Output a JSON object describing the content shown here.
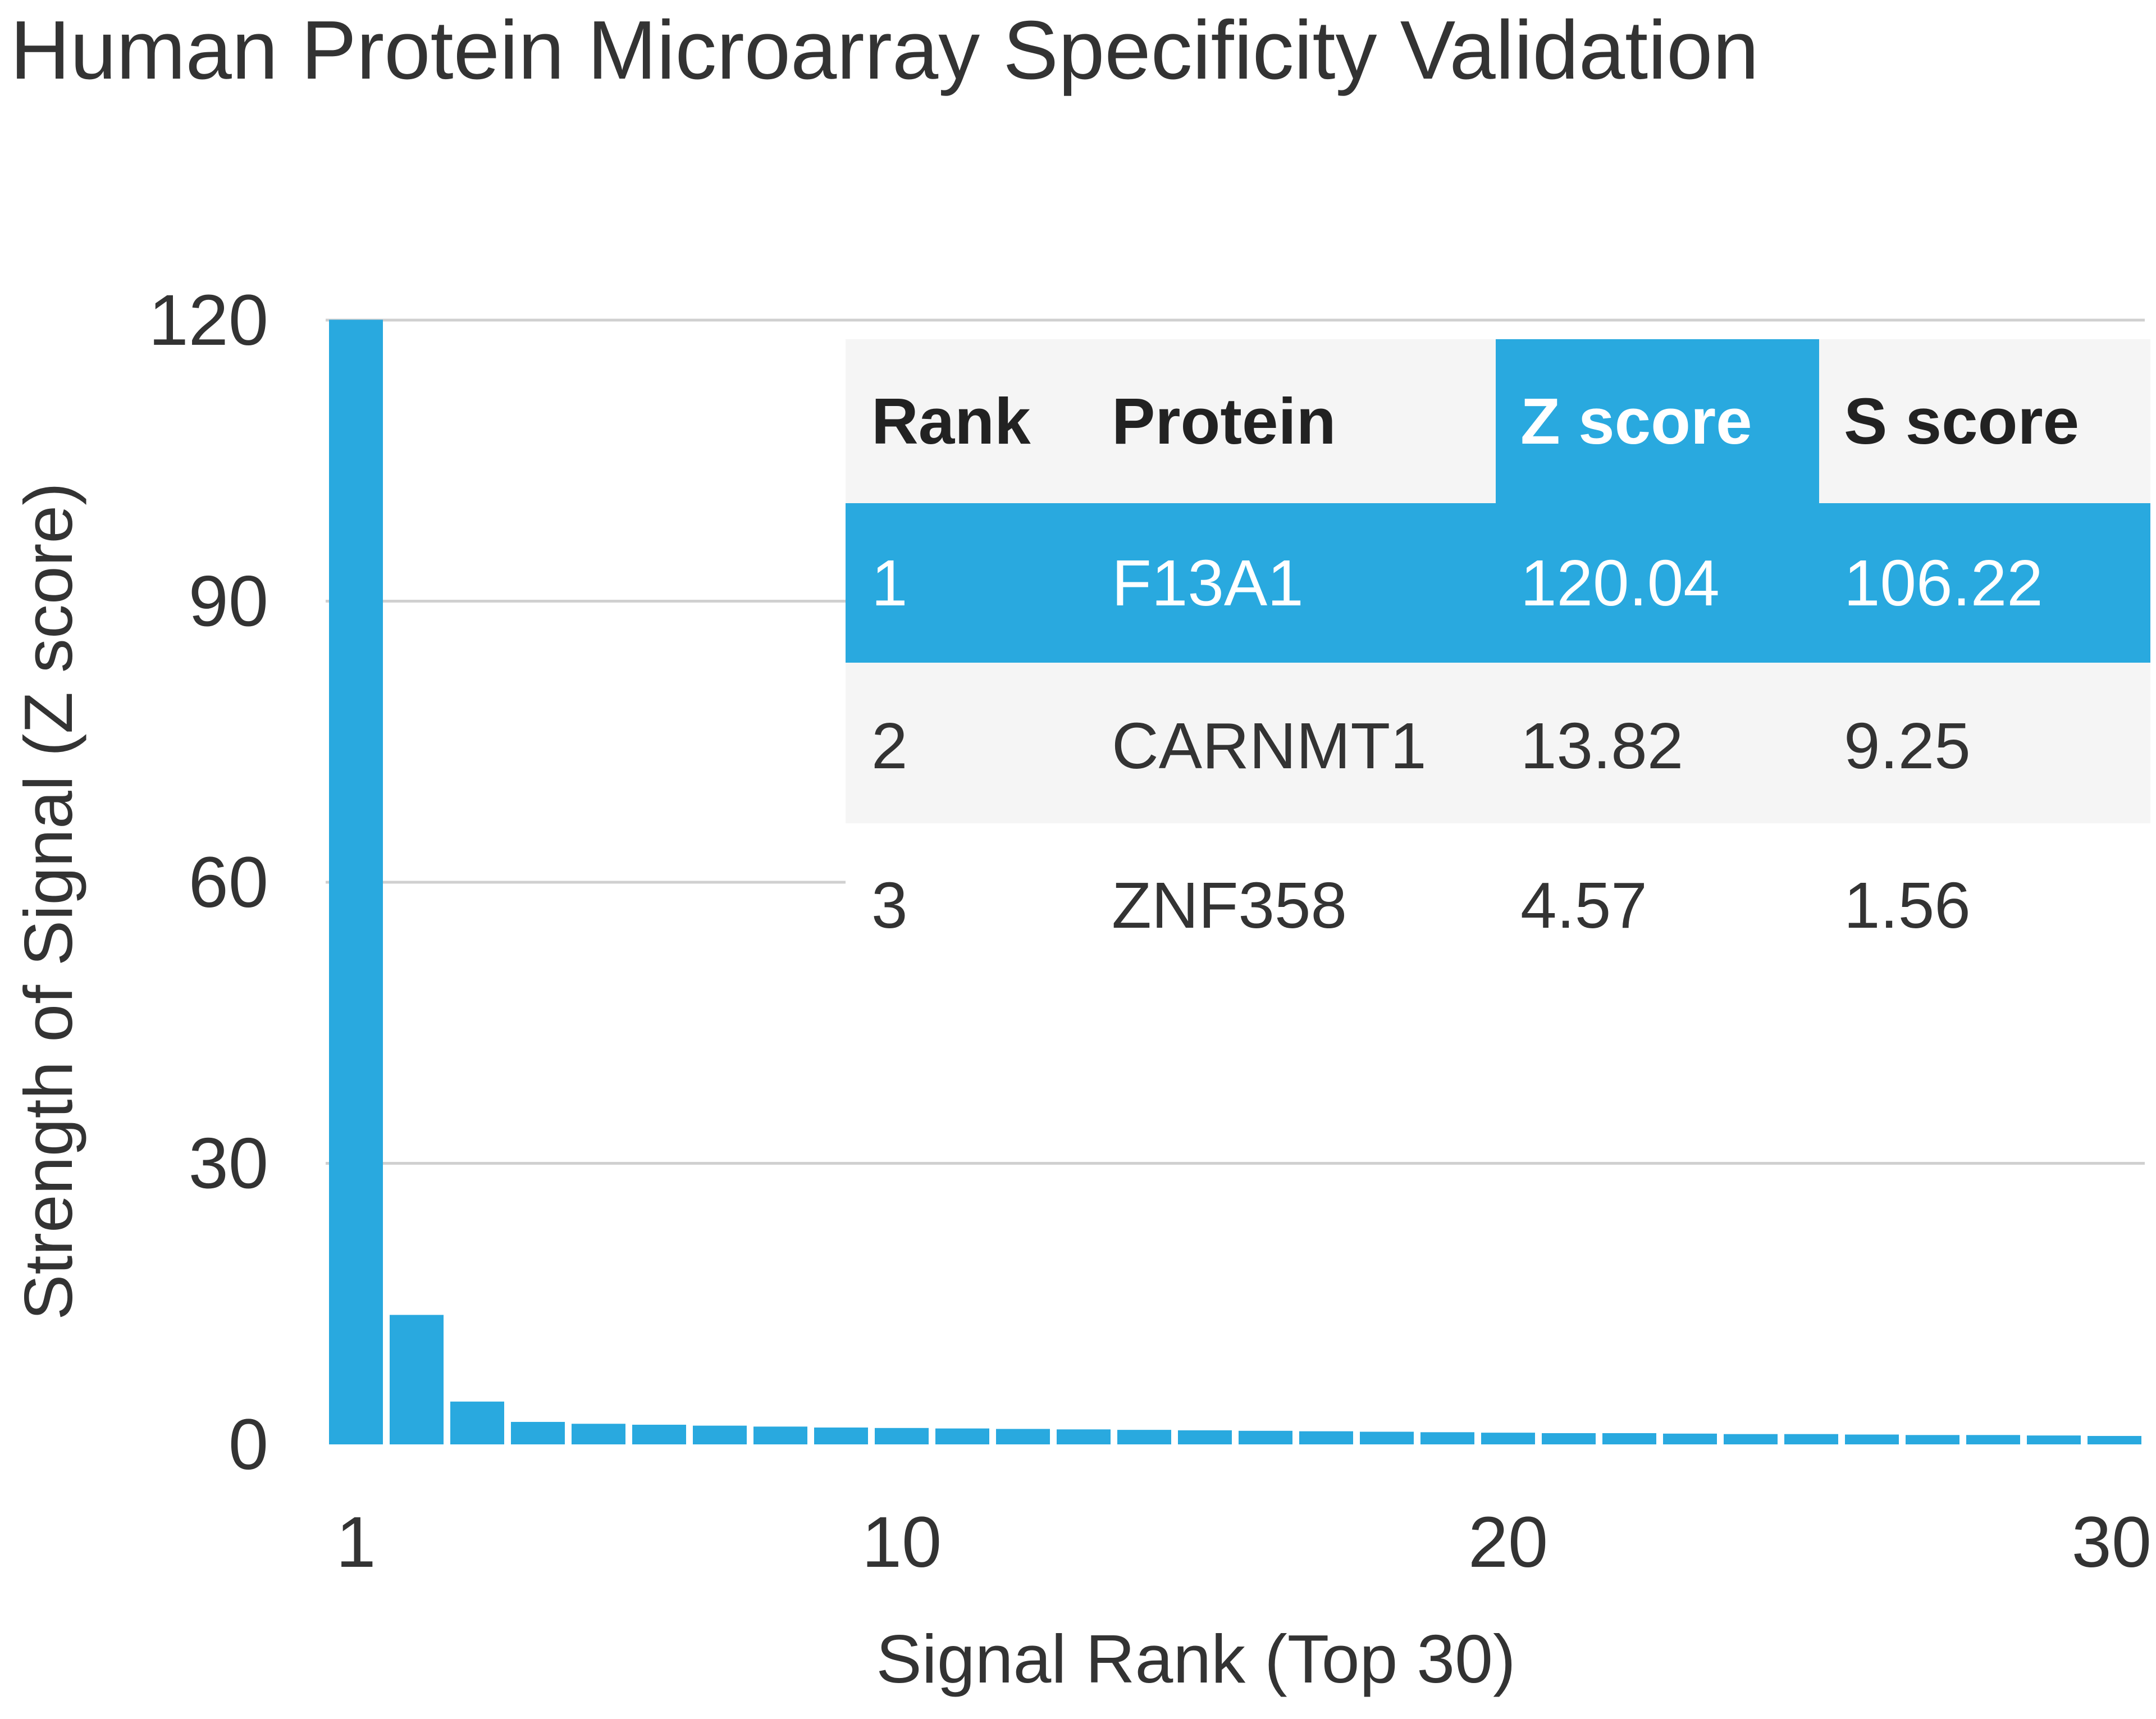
{
  "chart_data": {
    "type": "bar",
    "title": "Human Protein Microarray Specificity Validation",
    "xlabel": "Signal Rank (Top 30)",
    "ylabel": "Strength of Signal (Z score)",
    "ylim": [
      0,
      120
    ],
    "xlim": [
      1,
      30
    ],
    "yticks": [
      "0",
      "30",
      "60",
      "90",
      "120"
    ],
    "xticks": [
      "1",
      "10",
      "20",
      "30"
    ],
    "grid": true,
    "bar_color": "#29a9df",
    "categories": [
      1,
      2,
      3,
      4,
      5,
      6,
      7,
      8,
      9,
      10,
      11,
      12,
      13,
      14,
      15,
      16,
      17,
      18,
      19,
      20,
      21,
      22,
      23,
      24,
      25,
      26,
      27,
      28,
      29,
      30
    ],
    "values": [
      120.04,
      13.82,
      4.57,
      2.4,
      2.2,
      2.1,
      2.0,
      1.9,
      1.8,
      1.75,
      1.7,
      1.65,
      1.6,
      1.55,
      1.5,
      1.45,
      1.4,
      1.35,
      1.3,
      1.25,
      1.2,
      1.2,
      1.15,
      1.1,
      1.1,
      1.05,
      1.0,
      1.0,
      0.95,
      0.9
    ]
  },
  "table": {
    "header_highlight_color": "#29a9df",
    "columns": [
      "Rank",
      "Protein",
      "Z score",
      "S score"
    ],
    "rows": [
      [
        "1",
        "F13A1",
        "120.04",
        "106.22"
      ],
      [
        "2",
        "CARNMT1",
        "13.82",
        "9.25"
      ],
      [
        "3",
        "ZNF358",
        "4.57",
        "1.56"
      ]
    ]
  }
}
